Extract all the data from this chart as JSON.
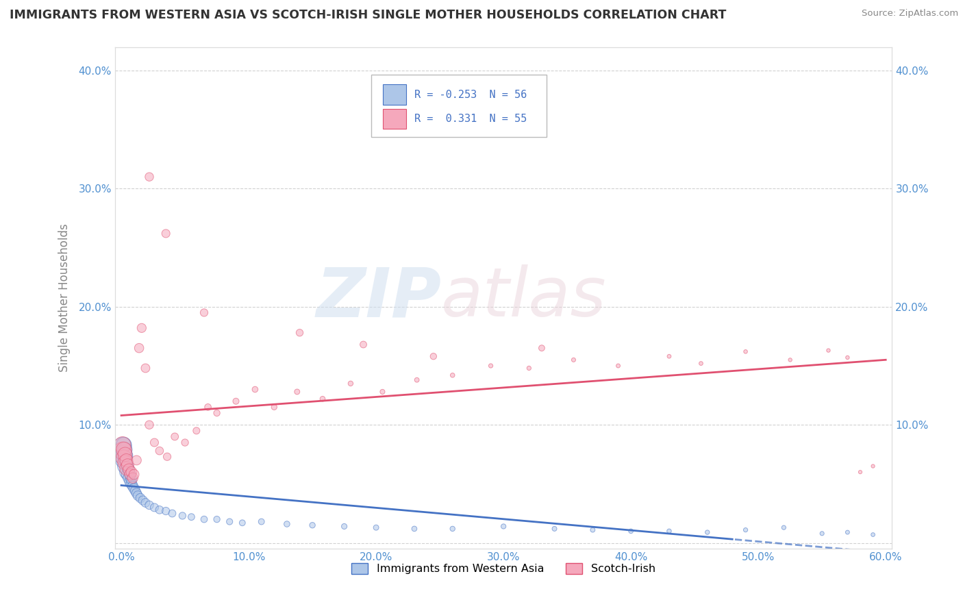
{
  "title": "IMMIGRANTS FROM WESTERN ASIA VS SCOTCH-IRISH SINGLE MOTHER HOUSEHOLDS CORRELATION CHART",
  "source": "Source: ZipAtlas.com",
  "ylabel": "Single Mother Households",
  "xlim": [
    -0.005,
    0.605
  ],
  "ylim": [
    -0.005,
    0.42
  ],
  "x_ticks": [
    0.0,
    0.1,
    0.2,
    0.3,
    0.4,
    0.5,
    0.6
  ],
  "x_tick_labels": [
    "0.0%",
    "10.0%",
    "20.0%",
    "30.0%",
    "40.0%",
    "50.0%",
    "60.0%"
  ],
  "y_ticks": [
    0.0,
    0.1,
    0.2,
    0.3,
    0.4
  ],
  "y_tick_labels_left": [
    "",
    "10.0%",
    "20.0%",
    "30.0%",
    "40.0%"
  ],
  "y_tick_labels_right": [
    "",
    "10.0%",
    "20.0%",
    "30.0%",
    "40.0%"
  ],
  "legend_label1": "Immigrants from Western Asia",
  "legend_label2": "Scotch-Irish",
  "R1": -0.253,
  "N1": 56,
  "R2": 0.331,
  "N2": 55,
  "color1": "#adc6e8",
  "color2": "#f5a8bc",
  "trendline1_color": "#4472c4",
  "trendline2_color": "#e05070",
  "watermark_zip": "ZIP",
  "watermark_atlas": "atlas",
  "background_color": "#ffffff",
  "blue_scatter_x": [
    0.001,
    0.001,
    0.002,
    0.002,
    0.002,
    0.003,
    0.003,
    0.003,
    0.004,
    0.004,
    0.004,
    0.005,
    0.005,
    0.006,
    0.006,
    0.007,
    0.007,
    0.008,
    0.008,
    0.009,
    0.01,
    0.011,
    0.012,
    0.013,
    0.015,
    0.017,
    0.019,
    0.022,
    0.026,
    0.03,
    0.035,
    0.04,
    0.048,
    0.055,
    0.065,
    0.075,
    0.085,
    0.095,
    0.11,
    0.13,
    0.15,
    0.175,
    0.2,
    0.23,
    0.26,
    0.3,
    0.34,
    0.37,
    0.4,
    0.43,
    0.46,
    0.49,
    0.52,
    0.55,
    0.57,
    0.59
  ],
  "blue_scatter_y": [
    0.075,
    0.082,
    0.07,
    0.076,
    0.083,
    0.065,
    0.072,
    0.079,
    0.06,
    0.068,
    0.074,
    0.058,
    0.064,
    0.055,
    0.062,
    0.052,
    0.058,
    0.05,
    0.054,
    0.048,
    0.046,
    0.044,
    0.042,
    0.04,
    0.038,
    0.036,
    0.034,
    0.032,
    0.03,
    0.028,
    0.027,
    0.025,
    0.023,
    0.022,
    0.02,
    0.02,
    0.018,
    0.017,
    0.018,
    0.016,
    0.015,
    0.014,
    0.013,
    0.012,
    0.012,
    0.014,
    0.012,
    0.011,
    0.01,
    0.01,
    0.009,
    0.011,
    0.013,
    0.008,
    0.009,
    0.007
  ],
  "blue_scatter_sizes": [
    400,
    350,
    300,
    280,
    260,
    250,
    230,
    220,
    200,
    190,
    180,
    170,
    160,
    150,
    145,
    140,
    135,
    130,
    125,
    120,
    115,
    110,
    105,
    100,
    95,
    90,
    85,
    80,
    75,
    70,
    65,
    60,
    55,
    50,
    48,
    45,
    43,
    40,
    40,
    38,
    36,
    34,
    32,
    30,
    28,
    27,
    25,
    24,
    23,
    22,
    21,
    20,
    20,
    19,
    18,
    17
  ],
  "pink_scatter_x": [
    0.001,
    0.001,
    0.002,
    0.002,
    0.003,
    0.003,
    0.004,
    0.004,
    0.005,
    0.006,
    0.007,
    0.008,
    0.009,
    0.01,
    0.012,
    0.014,
    0.016,
    0.019,
    0.022,
    0.026,
    0.03,
    0.036,
    0.042,
    0.05,
    0.059,
    0.068,
    0.075,
    0.09,
    0.105,
    0.12,
    0.138,
    0.158,
    0.18,
    0.205,
    0.232,
    0.26,
    0.29,
    0.32,
    0.355,
    0.39,
    0.43,
    0.455,
    0.49,
    0.525,
    0.555,
    0.57,
    0.59,
    0.022,
    0.035,
    0.065,
    0.14,
    0.19,
    0.245,
    0.33,
    0.58
  ],
  "pink_scatter_y": [
    0.078,
    0.083,
    0.072,
    0.079,
    0.068,
    0.075,
    0.063,
    0.07,
    0.066,
    0.062,
    0.058,
    0.06,
    0.055,
    0.058,
    0.07,
    0.165,
    0.182,
    0.148,
    0.1,
    0.085,
    0.078,
    0.073,
    0.09,
    0.085,
    0.095,
    0.115,
    0.11,
    0.12,
    0.13,
    0.115,
    0.128,
    0.122,
    0.135,
    0.128,
    0.138,
    0.142,
    0.15,
    0.148,
    0.155,
    0.15,
    0.158,
    0.152,
    0.162,
    0.155,
    0.163,
    0.157,
    0.065,
    0.31,
    0.262,
    0.195,
    0.178,
    0.168,
    0.158,
    0.165,
    0.06
  ],
  "pink_scatter_sizes": [
    350,
    300,
    280,
    260,
    240,
    220,
    200,
    185,
    170,
    155,
    140,
    130,
    120,
    112,
    100,
    95,
    90,
    85,
    80,
    75,
    70,
    65,
    60,
    55,
    52,
    48,
    45,
    42,
    38,
    35,
    32,
    30,
    28,
    26,
    24,
    22,
    20,
    20,
    19,
    18,
    17,
    17,
    16,
    15,
    15,
    15,
    14,
    80,
    75,
    65,
    55,
    50,
    45,
    40,
    14
  ],
  "trendline_x_solid_end": 0.48,
  "trendline_x_dashed_start": 0.48
}
